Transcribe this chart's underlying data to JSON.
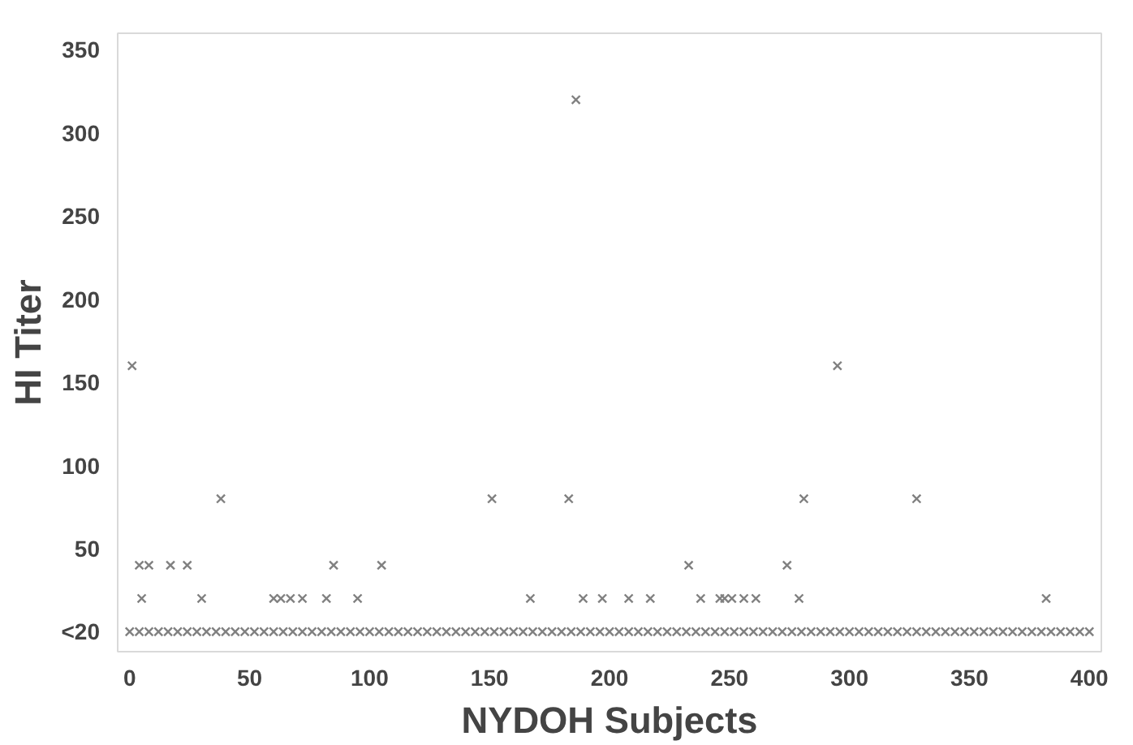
{
  "chart_data": {
    "type": "scatter",
    "xlabel": "NYDOH Subjects",
    "ylabel": "HI Titer",
    "marker": "cross",
    "grid": false,
    "xlim": [
      -5,
      405
    ],
    "ylim": [
      -12,
      360
    ],
    "xticks": [
      0,
      50,
      100,
      150,
      200,
      250,
      300,
      350,
      400
    ],
    "yticks": [
      {
        "value": 0,
        "label": "<20"
      },
      50,
      100,
      150,
      200,
      250,
      300,
      350
    ],
    "series": [
      {
        "color": "#808080",
        "x": [
          1,
          38,
          151,
          186,
          295,
          183,
          281,
          328,
          4,
          8,
          17,
          24,
          85,
          105,
          233,
          274,
          5,
          30,
          60,
          63,
          67,
          72,
          82,
          95,
          167,
          189,
          197,
          208,
          217,
          238,
          246,
          248,
          251,
          256,
          261,
          279,
          382
        ],
        "values": [
          160,
          80,
          80,
          320,
          160,
          80,
          80,
          80,
          40,
          40,
          40,
          40,
          40,
          40,
          40,
          40,
          20,
          20,
          20,
          20,
          20,
          20,
          20,
          20,
          20,
          20,
          20,
          20,
          20,
          20,
          20,
          20,
          20,
          20,
          20,
          20,
          20
        ]
      },
      {
        "color": "#808080",
        "x": [
          0,
          4,
          8,
          12,
          16,
          20,
          24,
          28,
          32,
          36,
          40,
          44,
          48,
          52,
          56,
          60,
          64,
          68,
          72,
          76,
          80,
          84,
          88,
          92,
          96,
          100,
          104,
          108,
          112,
          116,
          120,
          124,
          128,
          132,
          136,
          140,
          144,
          148,
          152,
          156,
          160,
          164,
          168,
          172,
          176,
          180,
          184,
          188,
          192,
          196,
          200,
          204,
          208,
          212,
          216,
          220,
          224,
          228,
          232,
          236,
          240,
          244,
          248,
          252,
          256,
          260,
          264,
          268,
          272,
          276,
          280,
          284,
          288,
          292,
          296,
          300,
          304,
          308,
          312,
          316,
          320,
          324,
          328,
          332,
          336,
          340,
          344,
          348,
          352,
          356,
          360,
          364,
          368,
          372,
          376,
          380,
          384,
          388,
          392,
          396,
          400
        ],
        "values": [
          0,
          0,
          0,
          0,
          0,
          0,
          0,
          0,
          0,
          0,
          0,
          0,
          0,
          0,
          0,
          0,
          0,
          0,
          0,
          0,
          0,
          0,
          0,
          0,
          0,
          0,
          0,
          0,
          0,
          0,
          0,
          0,
          0,
          0,
          0,
          0,
          0,
          0,
          0,
          0,
          0,
          0,
          0,
          0,
          0,
          0,
          0,
          0,
          0,
          0,
          0,
          0,
          0,
          0,
          0,
          0,
          0,
          0,
          0,
          0,
          0,
          0,
          0,
          0,
          0,
          0,
          0,
          0,
          0,
          0,
          0,
          0,
          0,
          0,
          0,
          0,
          0,
          0,
          0,
          0,
          0,
          0,
          0,
          0,
          0,
          0,
          0,
          0,
          0,
          0,
          0,
          0,
          0,
          0,
          0,
          0,
          0,
          0,
          0,
          0,
          0
        ]
      }
    ]
  }
}
